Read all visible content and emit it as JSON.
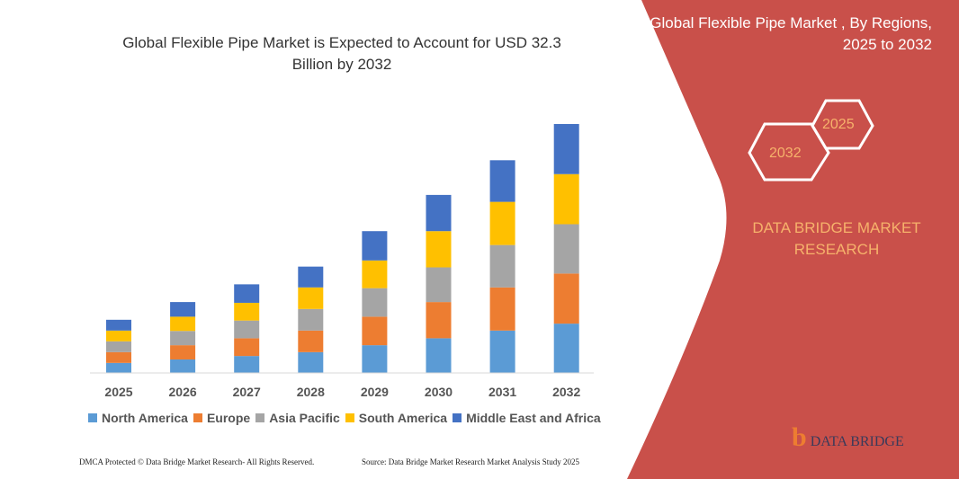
{
  "title": "Global Flexible Pipe Market is Expected to Account for USD 32.3 Billion by 2032",
  "side_panel": {
    "title": "Global Flexible Pipe Market , By Regions, 2025 to 2032",
    "hex_start": "2025",
    "hex_end": "2032",
    "brand": "DATA BRIDGE MARKET RESEARCH",
    "logo_text": "DATA BRIDGE",
    "logo_subtext": "MARKET RESEARCH",
    "color": "#c9504a"
  },
  "footer": {
    "left": "DMCA Protected © Data Bridge Market Research- All Rights Reserved.",
    "right": "Source: Data Bridge Market Research Market Analysis Study 2025"
  },
  "chart_data": {
    "type": "bar",
    "stacked": true,
    "title": "Global Flexible Pipe Market is Expected to Account for USD 32.3 Billion by 2032",
    "xlabel": "",
    "ylabel": "",
    "grid": false,
    "legend_position": "bottom",
    "categories": [
      "2025",
      "2026",
      "2027",
      "2028",
      "2029",
      "2030",
      "2031",
      "2032"
    ],
    "series": [
      {
        "name": "North America",
        "color": "#5b9bd5",
        "values": [
          1.3,
          1.75,
          2.2,
          2.7,
          3.6,
          4.5,
          5.5,
          6.4
        ]
      },
      {
        "name": "Europe",
        "color": "#ed7d31",
        "values": [
          1.4,
          1.85,
          2.3,
          2.8,
          3.7,
          4.7,
          5.6,
          6.5
        ]
      },
      {
        "name": "Asia Pacific",
        "color": "#a5a5a5",
        "values": [
          1.4,
          1.85,
          2.3,
          2.8,
          3.7,
          4.5,
          5.5,
          6.4
        ]
      },
      {
        "name": "South America",
        "color": "#ffc000",
        "values": [
          1.4,
          1.85,
          2.3,
          2.8,
          3.6,
          4.7,
          5.6,
          6.5
        ]
      },
      {
        "name": "Middle East and Africa",
        "color": "#4472c4",
        "values": [
          1.4,
          1.9,
          2.4,
          2.7,
          3.8,
          4.7,
          5.4,
          6.5
        ]
      }
    ]
  }
}
